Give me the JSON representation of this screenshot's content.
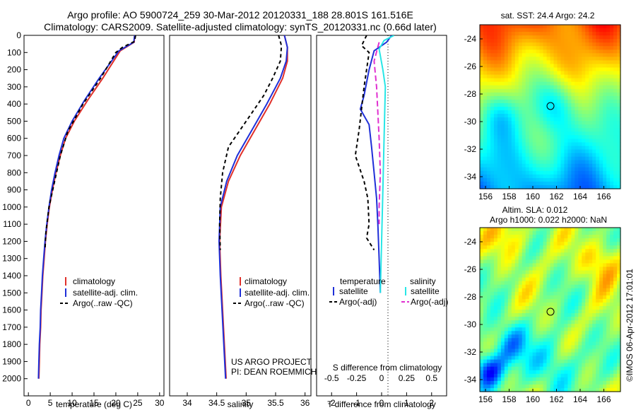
{
  "header": {
    "title_line1": "Argo profile: AO 5900724_259 30-Mar-2012 20120331_188 28.801S 161.516E",
    "title_line2": "Climatology: CARS2009. Satellite-adjusted climatology: synTS_20120331.nc (0.66d later)"
  },
  "colors": {
    "climatology": "#e0302a",
    "satellite": "#1f2fd8",
    "argo": "#000000",
    "sal_satellite": "#27e6e6",
    "sal_argo": "#e030d0"
  },
  "chart_data": [
    {
      "type": "line",
      "xlabel": "temperature (deg C)",
      "ylabel": "",
      "xlim": [
        -1,
        31
      ],
      "ylim": [
        0,
        2100
      ],
      "y_inverted": true,
      "xticks": [
        0,
        5,
        10,
        15,
        20,
        25,
        30
      ],
      "yticks": [
        0,
        100,
        200,
        300,
        400,
        500,
        600,
        700,
        800,
        900,
        1000,
        1100,
        1200,
        1300,
        1400,
        1500,
        1600,
        1700,
        1800,
        1900,
        2000
      ],
      "legend": [
        "climatology",
        "satellite-adj. clim.",
        "Argo(..raw -QC)"
      ],
      "series": [
        {
          "name": "climatology",
          "color": "#e0302a",
          "dash": "none",
          "points": [
            [
              24.3,
              0
            ],
            [
              24.2,
              40
            ],
            [
              21,
              90
            ],
            [
              19.5,
              150
            ],
            [
              17,
              250
            ],
            [
              13.5,
              380
            ],
            [
              10.5,
              500
            ],
            [
              8.5,
              600
            ],
            [
              7.3,
              700
            ],
            [
              6.3,
              800
            ],
            [
              5.5,
              900
            ],
            [
              4.8,
              1000
            ],
            [
              4.3,
              1100
            ],
            [
              3.9,
              1200
            ],
            [
              3.6,
              1300
            ],
            [
              3.3,
              1400
            ],
            [
              3.1,
              1500
            ],
            [
              2.9,
              1600
            ],
            [
              2.8,
              1700
            ],
            [
              2.6,
              1800
            ],
            [
              2.5,
              1900
            ],
            [
              2.4,
              2000
            ]
          ]
        },
        {
          "name": "satellite-adj. clim.",
          "color": "#1f2fd8",
          "dash": "none",
          "points": [
            [
              24.3,
              0
            ],
            [
              24.1,
              40
            ],
            [
              20.7,
              90
            ],
            [
              19,
              150
            ],
            [
              16.2,
              250
            ],
            [
              12.8,
              380
            ],
            [
              10,
              500
            ],
            [
              8.1,
              600
            ],
            [
              7,
              700
            ],
            [
              6.1,
              800
            ],
            [
              5.3,
              900
            ],
            [
              4.7,
              1000
            ],
            [
              4.2,
              1100
            ],
            [
              3.8,
              1200
            ],
            [
              3.5,
              1300
            ],
            [
              3.2,
              1400
            ],
            [
              3,
              1500
            ],
            [
              2.8,
              1600
            ],
            [
              2.7,
              1700
            ],
            [
              2.5,
              1800
            ],
            [
              2.4,
              1900
            ],
            [
              2.3,
              2000
            ]
          ]
        },
        {
          "name": "Argo(..raw -QC)",
          "color": "#000000",
          "dash": "5,4",
          "points": [
            [
              24.5,
              0
            ],
            [
              24.3,
              35
            ],
            [
              21.5,
              70
            ],
            [
              20,
              100
            ],
            [
              16.5,
              250
            ],
            [
              12.5,
              400
            ],
            [
              9,
              560
            ],
            [
              7.3,
              700
            ],
            [
              6,
              850
            ],
            [
              4.7,
              1000
            ],
            [
              4,
              1150
            ],
            [
              3.8,
              1250
            ]
          ]
        }
      ]
    },
    {
      "type": "line",
      "xlabel": "salinity",
      "xlim": [
        33.7,
        36.1
      ],
      "ylim": [
        0,
        2100
      ],
      "y_inverted": true,
      "xticks": [
        34,
        34.5,
        35,
        35.5,
        36
      ],
      "legend": [
        "climatology",
        "satellite-adj. clim.",
        "Argo(..raw -QC)"
      ],
      "annotation": [
        "US ARGO PROJECT",
        "PI: DEAN ROEMMICH"
      ],
      "series": [
        {
          "name": "climatology",
          "color": "#e0302a",
          "dash": "none",
          "points": [
            [
              35.65,
              0
            ],
            [
              35.7,
              70
            ],
            [
              35.7,
              150
            ],
            [
              35.62,
              250
            ],
            [
              35.4,
              400
            ],
            [
              35.15,
              550
            ],
            [
              34.9,
              700
            ],
            [
              34.7,
              850
            ],
            [
              34.58,
              1000
            ],
            [
              34.55,
              1200
            ],
            [
              34.57,
              1400
            ],
            [
              34.6,
              1600
            ],
            [
              34.63,
              1800
            ],
            [
              34.66,
              2000
            ]
          ]
        },
        {
          "name": "satellite-adj. clim.",
          "color": "#1f2fd8",
          "dash": "none",
          "points": [
            [
              35.65,
              0
            ],
            [
              35.7,
              70
            ],
            [
              35.68,
              150
            ],
            [
              35.58,
              250
            ],
            [
              35.35,
              400
            ],
            [
              35.1,
              550
            ],
            [
              34.85,
              700
            ],
            [
              34.67,
              850
            ],
            [
              34.56,
              1000
            ],
            [
              34.54,
              1200
            ],
            [
              34.56,
              1400
            ],
            [
              34.59,
              1600
            ],
            [
              34.62,
              1800
            ],
            [
              34.65,
              2000
            ]
          ]
        },
        {
          "name": "Argo(..raw -QC)",
          "color": "#000000",
          "dash": "5,4",
          "points": [
            [
              35.55,
              0
            ],
            [
              35.6,
              60
            ],
            [
              35.58,
              150
            ],
            [
              35.45,
              250
            ],
            [
              35.3,
              350
            ],
            [
              35.1,
              450
            ],
            [
              34.9,
              550
            ],
            [
              34.7,
              650
            ],
            [
              34.6,
              800
            ],
            [
              34.56,
              950
            ],
            [
              34.55,
              1100
            ],
            [
              34.56,
              1250
            ]
          ]
        }
      ]
    },
    {
      "type": "line",
      "xlabel": "T difference from climatology",
      "xlabel2": "S difference from climatology",
      "xlim": [
        -2.6,
        2.6
      ],
      "ylim": [
        0,
        2100
      ],
      "y_inverted": true,
      "xticks": [
        -2,
        -1,
        0,
        1,
        2
      ],
      "xticks2": [
        -0.5,
        -0.25,
        0,
        0.25,
        0.5
      ],
      "legend_headers": [
        "temperature",
        "salinity"
      ],
      "legend": [
        "satellite",
        "Argo(-adj)",
        "satellite",
        "Argo(-adj)"
      ],
      "series": [
        {
          "name": "satellite",
          "color": "#1f2fd8",
          "dash": "none",
          "points": [
            [
              0.4,
              0
            ],
            [
              0.2,
              40
            ],
            [
              -0.3,
              90
            ],
            [
              -0.5,
              200
            ],
            [
              -0.7,
              350
            ],
            [
              -0.85,
              430
            ],
            [
              -0.5,
              520
            ],
            [
              -0.4,
              650
            ],
            [
              -0.3,
              800
            ],
            [
              -0.2,
              950
            ],
            [
              -0.15,
              1100
            ],
            [
              -0.1,
              1300
            ],
            [
              -0.05,
              1500
            ],
            [
              -0.05,
              1500
            ]
          ]
        },
        {
          "name": "Argo(-adj)",
          "color": "#000000",
          "dash": "5,4",
          "points": [
            [
              -0.6,
              0
            ],
            [
              -0.8,
              60
            ],
            [
              -0.5,
              100
            ],
            [
              -0.7,
              300
            ],
            [
              -0.9,
              550
            ],
            [
              -1.05,
              700
            ],
            [
              -0.7,
              850
            ],
            [
              -0.55,
              950
            ],
            [
              -0.5,
              1100
            ],
            [
              -0.6,
              1180
            ],
            [
              -0.3,
              1250
            ]
          ]
        },
        {
          "name": "satellite",
          "color": "#27e6e6",
          "dash": "none",
          "points": [
            [
              0.5,
              0
            ],
            [
              0.1,
              30
            ],
            [
              -0.1,
              80
            ],
            [
              0.05,
              200
            ],
            [
              0.15,
              300
            ],
            [
              0.1,
              600
            ],
            [
              0.05,
              900
            ],
            [
              0,
              1200
            ],
            [
              -0.05,
              1500
            ]
          ]
        },
        {
          "name": "Argo(-adj)",
          "color": "#e030d0",
          "dash": "8,4",
          "points": [
            [
              -0.1,
              40
            ],
            [
              -0.3,
              150
            ],
            [
              -0.2,
              300
            ],
            [
              -0.15,
              450
            ],
            [
              -0.1,
              600
            ],
            [
              -0.05,
              800
            ],
            [
              -0.1,
              1000
            ],
            [
              -0.1,
              1100
            ]
          ]
        }
      ]
    }
  ],
  "maps": {
    "top": {
      "title": "sat. SST: 24.4  Argo: 24.2",
      "xticks": [
        "156",
        "158",
        "160",
        "162",
        "164",
        "166"
      ],
      "yticks": [
        "-24",
        "-26",
        "-28",
        "-30",
        "-32",
        "-34"
      ],
      "colormap": "jet"
    },
    "bottom": {
      "title_line1": "Altim. SLA: 0.012",
      "title_line2": "Argo h1000: 0.022  h2000: NaN",
      "xticks": [
        "156",
        "158",
        "160",
        "162",
        "164",
        "166"
      ],
      "yticks": [
        "-24",
        "-26",
        "-28",
        "-30",
        "-32",
        "-34"
      ],
      "colormap": "jet"
    },
    "float_position_label": "28.801S 161.516E"
  },
  "footer": {
    "stamp": "©IMOS 06-Apr-2012 17:01:01"
  }
}
